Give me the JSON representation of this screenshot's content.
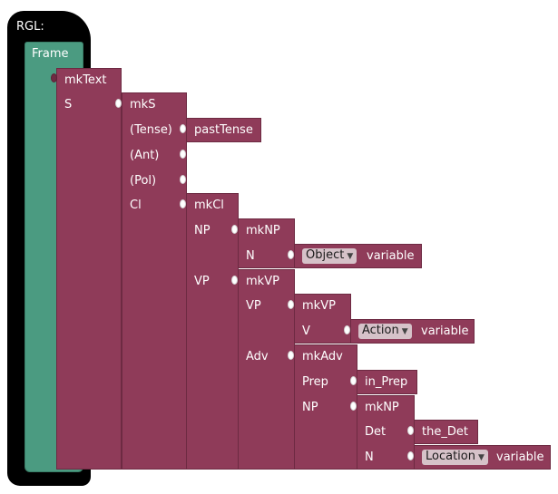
{
  "hat": {
    "label": "RGL:"
  },
  "frame": {
    "label": "Frame"
  },
  "nodes": {
    "mkText": "mkText",
    "mkText_slot": "S",
    "mkS": "mkS",
    "tense_slot": "(Tense)",
    "pastTense": "pastTense",
    "ant_slot": "(Ant)",
    "pol_slot": "(Pol)",
    "cl_slot": "Cl",
    "mkCl": "mkCl",
    "np_slot": "NP",
    "mkNP": "mkNP",
    "n_slot": "N",
    "object_dd": "Object",
    "object_var": "variable",
    "vp_slot": "VP",
    "mkVP": "mkVP",
    "vp2_slot": "VP",
    "mkVP2": "mkVP",
    "v_slot": "V",
    "action_dd": "Action",
    "action_var": "variable",
    "adv_slot": "Adv",
    "mkAdv": "mkAdv",
    "prep_slot": "Prep",
    "in_Prep": "in_Prep",
    "np2_slot": "NP",
    "mkNP2": "mkNP",
    "det_slot": "Det",
    "the_Det": "the_Det",
    "n2_slot": "N",
    "location_dd": "Location",
    "location_var": "variable"
  },
  "colors": {
    "hat": "#000000",
    "frame": "#4b9b81",
    "block": "#8f3b59"
  }
}
